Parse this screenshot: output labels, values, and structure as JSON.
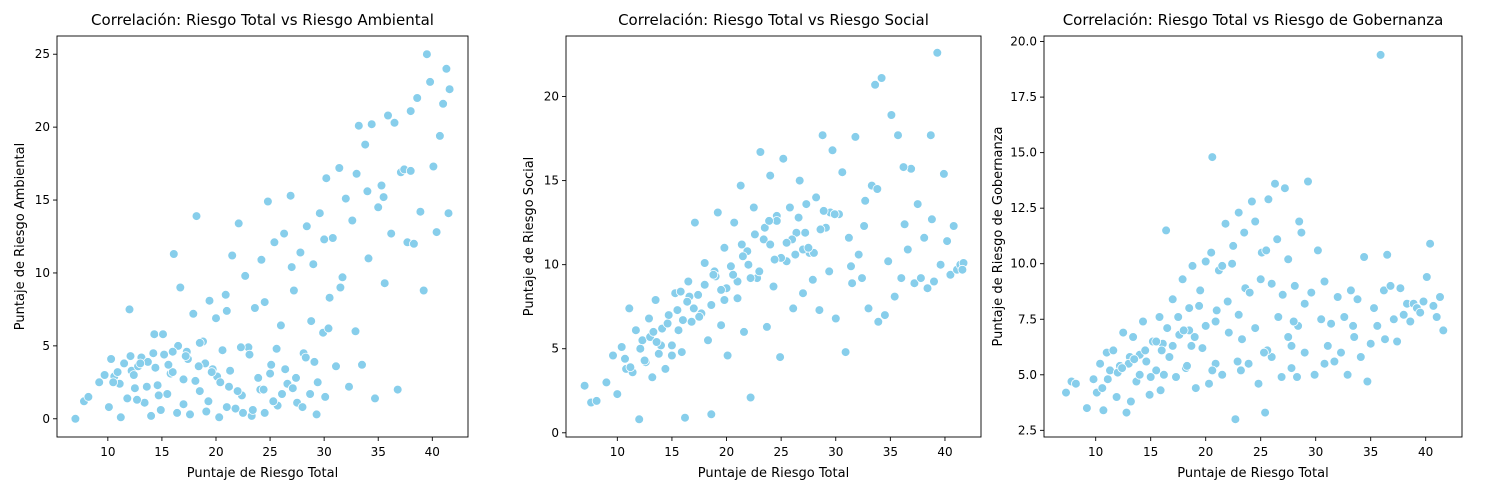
{
  "chart_data": [
    {
      "type": "scatter",
      "title": "Correlación: Riesgo Total vs Riesgo Ambiental",
      "xlabel": "Puntaje de Riesgo Total",
      "ylabel": "Puntaje de Riesgo Ambiental",
      "xlim": [
        5.3,
        43.3
      ],
      "ylim": [
        -1.25,
        26.25
      ],
      "xticks": [
        10,
        15,
        20,
        25,
        30,
        35,
        40
      ],
      "yticks": [
        0,
        5,
        10,
        15,
        20,
        25
      ],
      "tick_format": "int",
      "marker_color": "#87CEEB",
      "grid": false,
      "x": [
        7.0,
        7.8,
        8.2,
        9.2,
        9.7,
        10.1,
        10.3,
        10.6,
        10.9,
        11.2,
        11.5,
        11.8,
        12.0,
        12.2,
        12.5,
        12.8,
        13.1,
        13.4,
        13.7,
        14.0,
        14.3,
        14.6,
        14.9,
        15.2,
        15.5,
        15.8,
        16.1,
        16.4,
        16.7,
        17.0,
        17.3,
        17.6,
        17.9,
        18.2,
        18.5,
        18.8,
        19.1,
        19.4,
        19.7,
        20.0,
        20.3,
        20.6,
        20.9,
        21.2,
        21.5,
        21.8,
        22.1,
        22.4,
        22.7,
        23.0,
        23.3,
        23.6,
        23.9,
        24.2,
        24.5,
        24.8,
        25.1,
        25.4,
        25.7,
        26.0,
        26.3,
        26.6,
        26.9,
        27.2,
        27.5,
        27.8,
        28.1,
        28.4,
        28.7,
        29.0,
        29.3,
        29.6,
        29.9,
        30.2,
        30.5,
        30.8,
        31.1,
        31.4,
        31.7,
        32.0,
        32.3,
        32.6,
        32.9,
        33.2,
        33.5,
        33.8,
        34.1,
        34.4,
        34.7,
        35.0,
        35.3,
        35.6,
        35.9,
        36.2,
        36.5,
        36.8,
        37.1,
        37.4,
        37.7,
        38.0,
        38.3,
        38.6,
        38.9,
        39.2,
        39.5,
        39.8,
        40.1,
        40.4,
        40.7,
        41.0,
        41.3,
        41.6,
        11.1,
        12.1,
        13.0,
        14.2,
        15.1,
        16.0,
        17.0,
        18.1,
        19.0,
        20.1,
        21.0,
        22.0,
        23.1,
        24.1,
        25.0,
        26.1,
        27.1,
        28.0,
        29.1,
        30.1,
        12.4,
        13.6,
        14.7,
        15.6,
        16.5,
        17.4,
        18.4,
        19.3,
        20.4,
        21.3,
        22.3,
        23.4,
        24.4,
        25.3,
        26.4,
        27.4,
        28.3,
        29.4,
        30.4,
        16.0,
        18.5,
        21.0,
        24.5,
        27.0,
        30.0,
        33.0,
        35.5,
        38.0,
        41.5,
        10.5,
        12.7,
        14.4,
        17.2,
        19.6,
        22.5,
        25.6,
        28.8,
        31.5,
        34.0
      ],
      "y": [
        0.0,
        1.2,
        1.5,
        2.5,
        3.0,
        0.8,
        4.1,
        2.9,
        3.2,
        0.1,
        3.8,
        1.4,
        7.5,
        3.3,
        2.1,
        3.6,
        4.2,
        1.1,
        3.9,
        0.2,
        5.8,
        2.3,
        0.6,
        4.4,
        1.7,
        3.1,
        11.3,
        0.4,
        9.0,
        2.7,
        4.6,
        0.3,
        7.2,
        13.9,
        1.9,
        5.3,
        0.5,
        8.1,
        3.4,
        6.9,
        0.1,
        4.7,
        8.5,
        2.2,
        11.2,
        0.7,
        13.4,
        1.6,
        9.8,
        4.9,
        0.2,
        7.6,
        2.8,
        10.9,
        0.4,
        14.9,
        3.7,
        12.1,
        0.9,
        6.4,
        12.7,
        2.4,
        15.3,
        8.8,
        1.1,
        11.4,
        4.5,
        13.2,
        1.7,
        10.6,
        0.3,
        14.1,
        5.9,
        16.5,
        8.3,
        12.4,
        3.6,
        17.2,
        9.7,
        15.1,
        2.2,
        13.6,
        6.0,
        20.1,
        3.7,
        18.8,
        11.0,
        20.2,
        1.4,
        14.5,
        16.0,
        9.3,
        20.8,
        12.7,
        20.3,
        2.0,
        16.9,
        17.1,
        12.1,
        21.1,
        12.0,
        22.0,
        14.2,
        8.8,
        25.0,
        23.1,
        17.3,
        12.8,
        19.4,
        21.6,
        24.0,
        22.6,
        2.4,
        4.3,
        3.8,
        4.5,
        5.8,
        3.2,
        1.0,
        2.6,
        3.8,
        2.9,
        0.8,
        1.9,
        4.4,
        2.0,
        3.1,
        1.7,
        2.1,
        0.8,
        3.9,
        1.5,
        3.0,
        2.2,
        1.6,
        3.7,
        5.0,
        4.1,
        3.6,
        1.2,
        2.5,
        3.3,
        4.9,
        0.6,
        2.0,
        1.2,
        3.4,
        2.8,
        4.2,
        2.5,
        6.2,
        4.6,
        5.2,
        7.4,
        8.0,
        10.4,
        12.3,
        16.8,
        15.2,
        17.0,
        14.1,
        2.5,
        1.3,
        3.5,
        4.3,
        3.2,
        0.4,
        4.8,
        6.7,
        9.0,
        15.6
      ]
    },
    {
      "type": "scatter",
      "title": "Correlación: Riesgo Total vs Riesgo Social",
      "xlabel": "Puntaje de Riesgo Total",
      "ylabel": "Puntaje de Riesgo Social",
      "xlim": [
        5.3,
        43.3
      ],
      "ylim": [
        -0.25,
        23.6
      ],
      "xticks": [
        10,
        15,
        20,
        25,
        30,
        35,
        40
      ],
      "yticks": [
        0,
        5,
        10,
        15,
        20
      ],
      "tick_format": "int",
      "marker_color": "#87CEEB",
      "grid": false,
      "x": [
        7.0,
        7.6,
        8.1,
        9.0,
        9.6,
        10.0,
        10.4,
        10.8,
        11.1,
        11.4,
        11.7,
        12.0,
        12.3,
        12.6,
        12.9,
        13.2,
        13.5,
        13.8,
        14.1,
        14.4,
        14.7,
        15.0,
        15.3,
        15.6,
        15.9,
        16.2,
        16.5,
        16.8,
        17.1,
        17.4,
        17.7,
        18.0,
        18.3,
        18.6,
        18.9,
        19.2,
        19.5,
        19.8,
        20.1,
        20.4,
        20.7,
        21.0,
        21.3,
        21.6,
        21.9,
        22.2,
        22.5,
        22.8,
        23.1,
        23.4,
        23.7,
        24.0,
        24.3,
        24.6,
        24.9,
        25.2,
        25.5,
        25.8,
        26.1,
        26.4,
        26.7,
        27.0,
        27.3,
        27.6,
        27.9,
        28.2,
        28.5,
        28.8,
        29.1,
        29.4,
        29.7,
        30.0,
        30.3,
        30.6,
        30.9,
        31.2,
        31.5,
        31.8,
        32.1,
        32.4,
        32.7,
        33.0,
        33.3,
        33.6,
        33.9,
        34.2,
        34.5,
        34.8,
        35.1,
        35.4,
        35.7,
        36.0,
        36.3,
        36.6,
        36.9,
        37.2,
        37.5,
        37.8,
        38.1,
        38.4,
        38.7,
        39.0,
        39.3,
        39.6,
        39.9,
        40.2,
        40.5,
        40.8,
        41.1,
        41.4,
        41.7,
        11.2,
        12.1,
        13.0,
        14.0,
        15.0,
        16.0,
        17.0,
        18.0,
        19.0,
        20.0,
        21.0,
        22.0,
        23.0,
        24.0,
        25.0,
        26.0,
        27.0,
        28.0,
        12.5,
        13.6,
        14.6,
        15.5,
        16.6,
        17.5,
        18.6,
        19.5,
        20.6,
        21.5,
        22.6,
        23.5,
        24.6,
        25.5,
        26.6,
        27.5,
        28.6,
        29.5,
        16.4,
        18.8,
        21.4,
        23.9,
        26.3,
        28.9,
        31.4,
        33.8,
        36.2,
        38.8,
        41.6,
        10.7,
        13.3,
        15.8,
        19.8,
        22.2,
        24.4,
        27.2,
        29.9,
        32.6
      ],
      "y": [
        2.8,
        1.8,
        1.9,
        3.0,
        4.6,
        2.3,
        5.1,
        3.8,
        7.4,
        3.6,
        6.1,
        0.8,
        5.5,
        4.2,
        6.8,
        3.3,
        7.9,
        4.7,
        6.2,
        3.8,
        7.0,
        5.2,
        8.3,
        6.1,
        4.8,
        0.9,
        9.0,
        6.6,
        12.5,
        8.2,
        7.1,
        10.1,
        5.5,
        1.1,
        9.6,
        13.1,
        6.4,
        11.0,
        4.6,
        9.9,
        12.5,
        8.0,
        14.7,
        6.0,
        10.8,
        2.1,
        13.4,
        9.2,
        16.7,
        11.5,
        6.3,
        15.3,
        8.7,
        12.9,
        4.5,
        16.3,
        10.2,
        13.4,
        7.4,
        11.9,
        15.0,
        8.3,
        13.6,
        10.7,
        9.1,
        14.0,
        7.3,
        17.7,
        12.2,
        9.6,
        16.8,
        6.8,
        13.0,
        15.5,
        4.8,
        11.6,
        8.9,
        17.6,
        10.6,
        9.2,
        13.8,
        7.4,
        14.7,
        20.7,
        6.6,
        21.1,
        7.0,
        10.2,
        18.9,
        8.1,
        17.7,
        9.2,
        12.4,
        10.9,
        15.7,
        8.9,
        13.6,
        9.2,
        11.6,
        8.6,
        17.7,
        9.0,
        22.6,
        10.0,
        15.4,
        11.4,
        9.4,
        12.3,
        9.7,
        10.0,
        10.1,
        3.9,
        5.0,
        5.7,
        5.2,
        4.6,
        6.7,
        7.4,
        8.8,
        9.3,
        8.6,
        9.0,
        10.0,
        9.6,
        11.2,
        10.4,
        11.5,
        10.9,
        10.7,
        4.3,
        5.4,
        6.5,
        7.3,
        8.1,
        6.9,
        7.6,
        8.5,
        9.4,
        10.5,
        11.8,
        12.2,
        12.6,
        11.3,
        12.8,
        11.0,
        12.1,
        13.1,
        7.8,
        9.4,
        11.2,
        12.6,
        10.6,
        13.2,
        9.9,
        14.5,
        15.8,
        12.7,
        9.7,
        4.4,
        6.0,
        8.4,
        7.9,
        9.2,
        10.3,
        11.9,
        13.0,
        12.3
      ]
    },
    {
      "type": "scatter",
      "title": "Correlación: Riesgo Total vs Riesgo de Gobernanza",
      "xlabel": "Puntaje de Riesgo Total",
      "ylabel": "Puntaje de Riesgo de Gobernanza",
      "xlim": [
        5.3,
        43.3
      ],
      "ylim": [
        2.2,
        20.25
      ],
      "xticks": [
        10,
        15,
        20,
        25,
        30,
        35,
        40
      ],
      "yticks": [
        2.5,
        5.0,
        7.5,
        10.0,
        12.5,
        15.0,
        17.5,
        20.0
      ],
      "tick_format": "1dp",
      "marker_color": "#87CEEB",
      "grid": false,
      "x": [
        7.3,
        7.8,
        8.2,
        9.2,
        9.8,
        10.1,
        10.4,
        10.7,
        11.0,
        11.3,
        11.6,
        11.9,
        12.2,
        12.5,
        12.8,
        13.1,
        13.4,
        13.7,
        14.0,
        14.3,
        14.6,
        14.9,
        15.2,
        15.5,
        15.8,
        16.1,
        16.4,
        16.7,
        17.0,
        17.3,
        17.6,
        17.9,
        18.2,
        18.5,
        18.8,
        19.1,
        19.4,
        19.7,
        20.0,
        20.3,
        20.6,
        20.9,
        21.2,
        21.5,
        21.8,
        22.1,
        22.4,
        22.7,
        23.0,
        23.3,
        23.6,
        23.9,
        24.2,
        24.5,
        24.8,
        25.1,
        25.4,
        25.7,
        26.0,
        26.3,
        26.6,
        26.9,
        27.2,
        27.5,
        27.8,
        28.1,
        28.4,
        28.7,
        29.0,
        29.3,
        29.6,
        29.9,
        30.2,
        30.5,
        30.8,
        31.1,
        31.4,
        31.7,
        32.0,
        32.3,
        32.6,
        32.9,
        33.2,
        33.5,
        33.8,
        34.1,
        34.4,
        34.7,
        35.0,
        35.3,
        35.6,
        35.9,
        36.2,
        36.5,
        36.8,
        37.1,
        37.4,
        37.7,
        38.0,
        38.3,
        38.6,
        38.9,
        39.2,
        39.5,
        39.8,
        40.1,
        40.4,
        40.7,
        41.0,
        41.3,
        41.6,
        11.1,
        12.0,
        13.0,
        14.0,
        15.0,
        16.0,
        17.0,
        18.0,
        19.0,
        20.0,
        21.0,
        22.0,
        23.0,
        24.0,
        25.0,
        26.0,
        27.0,
        28.0,
        29.0,
        12.4,
        13.5,
        14.5,
        15.5,
        16.5,
        17.5,
        18.5,
        19.5,
        20.5,
        21.5,
        22.5,
        23.5,
        24.5,
        25.5,
        26.5,
        27.5,
        28.5,
        16.2,
        18.7,
        20.9,
        23.2,
        25.6,
        28.3,
        30.8,
        33.4,
        36.3,
        10.6,
        13.2,
        15.9,
        18.3,
        20.6,
        22.9,
        25.3,
        27.8
      ],
      "y": [
        4.2,
        4.7,
        4.6,
        3.5,
        4.8,
        4.2,
        5.5,
        3.4,
        6.0,
        5.2,
        6.1,
        4.0,
        5.4,
        6.9,
        3.3,
        5.8,
        6.7,
        4.7,
        5.0,
        7.4,
        5.6,
        4.1,
        6.5,
        5.2,
        7.6,
        6.4,
        11.5,
        5.8,
        8.4,
        4.9,
        6.8,
        9.3,
        5.3,
        7.0,
        9.9,
        4.4,
        8.1,
        6.2,
        10.1,
        4.6,
        14.8,
        7.4,
        9.7,
        5.0,
        11.8,
        6.9,
        10.0,
        3.0,
        12.3,
        6.6,
        8.9,
        5.5,
        12.8,
        7.1,
        4.6,
        10.5,
        3.3,
        12.9,
        5.8,
        13.6,
        7.6,
        4.9,
        13.4,
        6.7,
        5.3,
        9.0,
        7.2,
        11.4,
        6.0,
        13.7,
        8.7,
        5.0,
        10.6,
        7.5,
        9.2,
        6.3,
        7.3,
        5.6,
        8.5,
        6.0,
        7.6,
        5.0,
        8.8,
        6.7,
        8.4,
        5.8,
        10.3,
        4.7,
        6.4,
        8.0,
        7.2,
        19.4,
        8.8,
        10.4,
        9.0,
        7.5,
        6.5,
        8.9,
        7.7,
        8.2,
        7.4,
        8.2,
        8.0,
        7.8,
        8.3,
        9.4,
        10.9,
        8.1,
        7.6,
        8.5,
        7.0,
        4.8,
        5.1,
        5.5,
        5.9,
        4.9,
        6.1,
        6.3,
        7.0,
        6.7,
        7.2,
        7.9,
        8.3,
        7.7,
        8.7,
        9.3,
        9.1,
        8.6,
        7.4,
        8.2,
        5.3,
        5.7,
        6.1,
        6.5,
        7.1,
        7.6,
        8.0,
        8.8,
        10.5,
        9.9,
        10.8,
        11.4,
        11.9,
        10.6,
        11.1,
        10.2,
        11.9,
        5.0,
        6.3,
        5.5,
        5.2,
        6.1,
        4.9,
        5.5,
        7.2,
        6.6,
        4.4,
        3.8,
        4.3,
        5.4,
        5.2,
        5.6,
        6.0,
        6.3
      ]
    }
  ]
}
